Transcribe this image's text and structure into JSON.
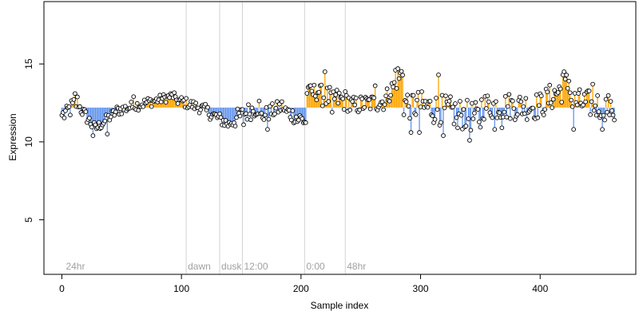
{
  "chart_data": {
    "type": "scatter",
    "xlabel": "Sample index",
    "ylabel": "Expression",
    "xlim": [
      -15,
      480
    ],
    "ylim": [
      1.5,
      19
    ],
    "x_ticks": [
      0,
      100,
      200,
      300,
      400
    ],
    "y_ticks": [
      5,
      10,
      15
    ],
    "grid": false,
    "baseline": 12.2,
    "colors": {
      "above_baseline": "#FFA500",
      "below_baseline": "#6495ED",
      "point_edge": "#000000",
      "annotation_line": "#d3d3d3"
    },
    "annotations": [
      {
        "label": "24hr",
        "x": 2,
        "line": false
      },
      {
        "label": "dawn",
        "x": 104,
        "line": true
      },
      {
        "label": "dusk",
        "x": 132,
        "line": true
      },
      {
        "label": "12:00",
        "x": 151,
        "line": true
      },
      {
        "label": "0:00",
        "x": 203,
        "line": true
      },
      {
        "label": "48hr",
        "x": 237,
        "line": true
      }
    ],
    "segments": [
      {
        "x0": 1,
        "x1": 14,
        "start": 11.7,
        "end": 12.6,
        "spread": 0.6
      },
      {
        "x0": 15,
        "x1": 28,
        "start": 12.2,
        "end": 10.8,
        "spread": 0.4
      },
      {
        "x0": 29,
        "x1": 45,
        "start": 10.9,
        "end": 11.9,
        "spread": 0.35
      },
      {
        "x0": 46,
        "x1": 75,
        "start": 12.0,
        "end": 12.6,
        "spread": 0.35
      },
      {
        "x0": 76,
        "x1": 95,
        "start": 12.6,
        "end": 13.0,
        "spread": 0.3
      },
      {
        "x0": 96,
        "x1": 115,
        "start": 12.7,
        "end": 12.2,
        "spread": 0.35
      },
      {
        "x0": 116,
        "x1": 140,
        "start": 12.2,
        "end": 11.1,
        "spread": 0.4
      },
      {
        "x0": 141,
        "x1": 165,
        "start": 11.3,
        "end": 12.3,
        "spread": 0.6
      },
      {
        "x0": 166,
        "x1": 185,
        "start": 11.6,
        "end": 12.3,
        "spread": 0.5
      },
      {
        "x0": 186,
        "x1": 204,
        "start": 12.0,
        "end": 11.3,
        "spread": 0.5
      },
      {
        "x0": 205,
        "x1": 215,
        "start": 13.0,
        "end": 13.3,
        "spread": 0.6
      },
      {
        "x0": 216,
        "x1": 240,
        "start": 13.0,
        "end": 12.6,
        "spread": 0.7
      },
      {
        "x0": 241,
        "x1": 270,
        "start": 12.3,
        "end": 12.6,
        "spread": 0.6
      },
      {
        "x0": 271,
        "x1": 285,
        "start": 12.8,
        "end": 14.5,
        "spread": 0.6
      },
      {
        "x0": 286,
        "x1": 320,
        "start": 12.5,
        "end": 12.0,
        "spread": 1.0
      },
      {
        "x0": 321,
        "x1": 350,
        "start": 12.0,
        "end": 11.5,
        "spread": 1.0
      },
      {
        "x0": 351,
        "x1": 400,
        "start": 12.3,
        "end": 12.3,
        "spread": 0.9
      },
      {
        "x0": 401,
        "x1": 425,
        "start": 12.4,
        "end": 13.8,
        "spread": 0.9
      },
      {
        "x0": 426,
        "x1": 462,
        "start": 12.6,
        "end": 12.2,
        "spread": 0.9
      }
    ],
    "fixed_points": [
      [
        0,
        11.7
      ],
      [
        4,
        12.3
      ],
      [
        11,
        13.1
      ],
      [
        26,
        10.4
      ],
      [
        38,
        10.5
      ],
      [
        60,
        12.9
      ],
      [
        95,
        12.9
      ],
      [
        152,
        11.1
      ],
      [
        172,
        10.8
      ],
      [
        197,
        11.3
      ],
      [
        206,
        13.5
      ],
      [
        220,
        14.5
      ],
      [
        226,
        11.9
      ],
      [
        262,
        13.6
      ],
      [
        279,
        14.6
      ],
      [
        281,
        14.7
      ],
      [
        292,
        10.6
      ],
      [
        299,
        10.6
      ],
      [
        315,
        14.3
      ],
      [
        319,
        10.4
      ],
      [
        331,
        10.9
      ],
      [
        341,
        10.1
      ],
      [
        362,
        10.8
      ],
      [
        368,
        10.9
      ],
      [
        419,
        14.3
      ],
      [
        420,
        14.5
      ],
      [
        424,
        13.9
      ],
      [
        428,
        10.8
      ],
      [
        444,
        13.7
      ],
      [
        452,
        10.8
      ],
      [
        459,
        12.6
      ],
      [
        462,
        11.4
      ]
    ]
  }
}
